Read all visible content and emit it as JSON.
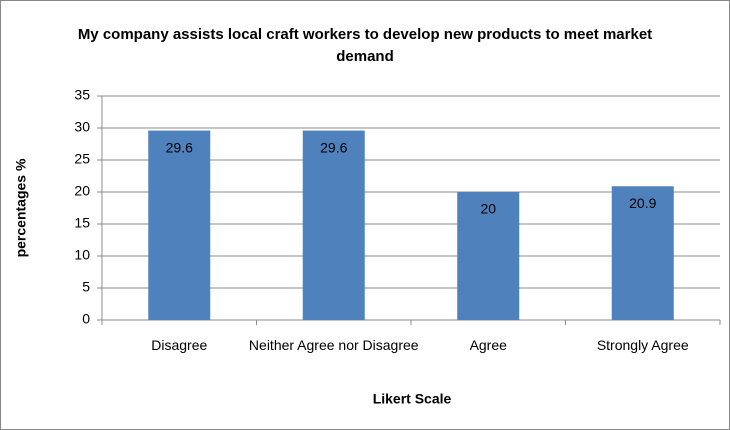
{
  "chart_data": {
    "type": "bar",
    "title": "My company assists local craft workers to develop new products to meet market demand",
    "x_label": "Likert Scale",
    "y_label": "percentages %",
    "categories": [
      "Disagree",
      "Neither Agree nor Disagree",
      "Agree",
      "Strongly Agree"
    ],
    "values": [
      29.6,
      29.6,
      20,
      20.9
    ],
    "color": "#4f81bd",
    "ylim": [
      0,
      35
    ],
    "yticks": [
      0,
      5,
      10,
      15,
      20,
      25,
      30,
      35
    ],
    "grid": true
  }
}
